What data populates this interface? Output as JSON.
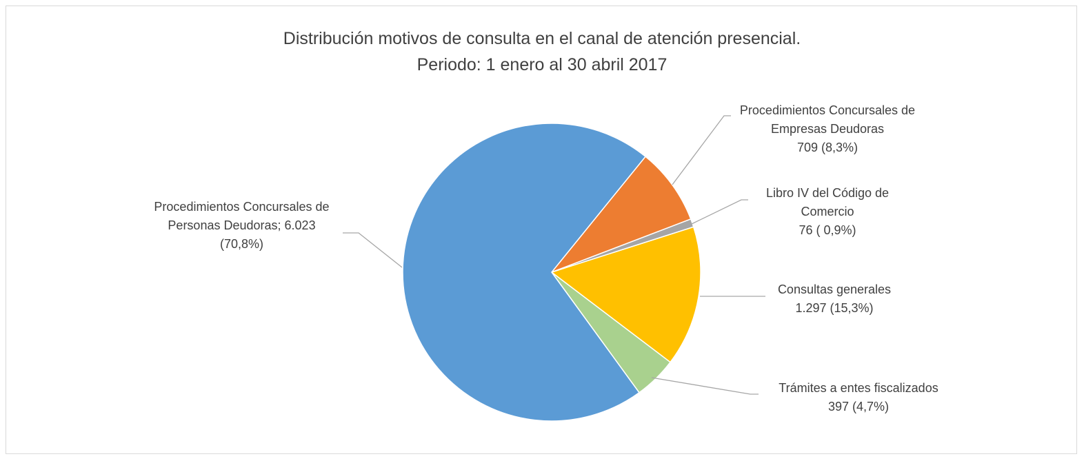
{
  "chart_data": {
    "type": "pie",
    "title": [
      "Distribución motivos de consulta en el canal de atención presencial.",
      "Periodo: 1 enero al 30 abril 2017"
    ],
    "categories": [
      "Procedimientos Concursales de Personas Deudoras;",
      "Procedimientos Concursales de Empresas Deudoras",
      "Libro IV del Código de Comercio",
      "Consultas generales",
      "Trámites a entes fiscalizados"
    ],
    "values": [
      6023,
      709,
      76,
      1297,
      397
    ],
    "value_labels": [
      "6.023 (70,8%)",
      "709 (8,3%)",
      "76 ( 0,9%)",
      "1.297 (15,3%)",
      "397 (4,7%)"
    ],
    "colors": [
      "#5b9bd5",
      "#ed7d31",
      "#a5a5a5",
      "#ffc000",
      "#a9d18e"
    ]
  }
}
